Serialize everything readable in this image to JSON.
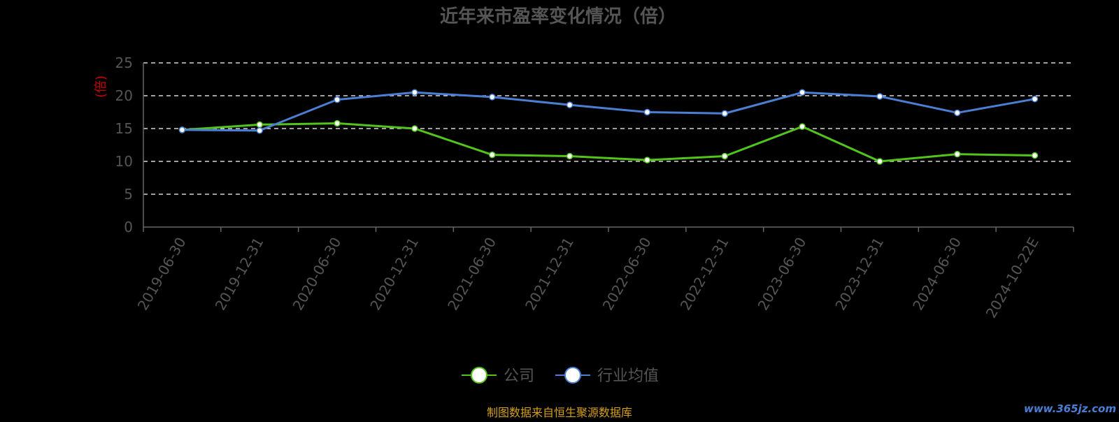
{
  "chart_data": {
    "type": "line",
    "title": "近年来市盈率变化情况（倍）",
    "ylabel": "(倍)",
    "xlabel": "",
    "ylim": [
      0,
      25
    ],
    "yticks": [
      0,
      5,
      10,
      15,
      20,
      25
    ],
    "grid": true,
    "legend_position": "bottom-center",
    "categories": [
      "2019-06-30",
      "2019-12-31",
      "2020-06-30",
      "2020-12-31",
      "2021-06-30",
      "2021-12-31",
      "2022-06-30",
      "2022-12-31",
      "2023-06-30",
      "2023-12-31",
      "2024-06-30",
      "2024-10-22E"
    ],
    "series": [
      {
        "name": "公司",
        "color": "#52c41a",
        "values": [
          14.8,
          15.6,
          15.8,
          15.0,
          11.0,
          10.8,
          10.2,
          10.8,
          15.3,
          10.0,
          11.1,
          10.9
        ]
      },
      {
        "name": "行业均值",
        "color": "#4a7fd4",
        "values": [
          14.8,
          14.7,
          19.4,
          20.5,
          19.8,
          18.6,
          17.5,
          17.3,
          20.5,
          19.9,
          17.4,
          19.5
        ]
      }
    ]
  },
  "source_note": "制图数据来自恒生聚源数据库",
  "watermark": "www.365jz.com",
  "colors": {
    "background": "#000000",
    "title": "#555555",
    "axis": "#666666",
    "grid": "#ffffff",
    "tick_text": "#555555",
    "ylabel": "#cc0000",
    "source": "#d4a017",
    "watermark": "#4a7fd4"
  }
}
